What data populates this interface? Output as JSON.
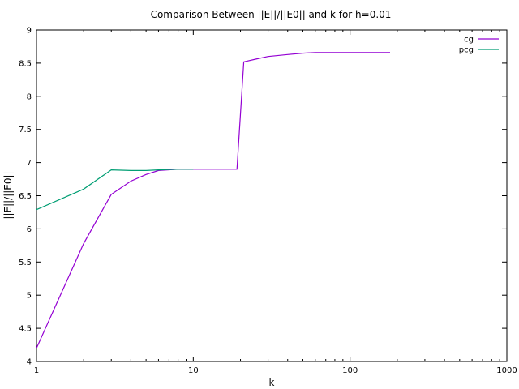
{
  "chart_data": {
    "type": "line",
    "title": "Comparison Between ||E||/||E0|| and k for h=0.01",
    "xlabel": "k",
    "ylabel": "||E||/||E0||",
    "xscale": "log",
    "xlim": [
      1,
      1000
    ],
    "ylim": [
      4,
      9
    ],
    "xticks": [
      1,
      10,
      100,
      1000
    ],
    "xtick_labels": [
      "1",
      "10",
      "100",
      "1000"
    ],
    "yticks": [
      4,
      4.5,
      5,
      5.5,
      6,
      6.5,
      7,
      7.5,
      8,
      8.5,
      9
    ],
    "ytick_labels": [
      "4",
      "4.5",
      "5",
      "5.5",
      "6",
      "6.5",
      "7",
      "7.5",
      "8",
      "8.5",
      "9"
    ],
    "grid": false,
    "legend_position": "top-right",
    "series": [
      {
        "name": "cg",
        "color": "#9400d3",
        "x": [
          1,
          2,
          3,
          4,
          5,
          6,
          8,
          10,
          19,
          21,
          25,
          30,
          40,
          50,
          60,
          70,
          100,
          180
        ],
        "y": [
          4.2,
          5.78,
          6.52,
          6.72,
          6.82,
          6.88,
          6.9,
          6.9,
          6.9,
          8.52,
          8.56,
          8.6,
          8.63,
          8.65,
          8.66,
          8.66,
          8.66,
          8.66
        ]
      },
      {
        "name": "pcg",
        "color": "#009e73",
        "x": [
          1,
          2,
          3,
          4,
          5,
          6,
          8,
          10
        ],
        "y": [
          6.29,
          6.6,
          6.89,
          6.88,
          6.88,
          6.89,
          6.9,
          6.9
        ]
      }
    ]
  }
}
